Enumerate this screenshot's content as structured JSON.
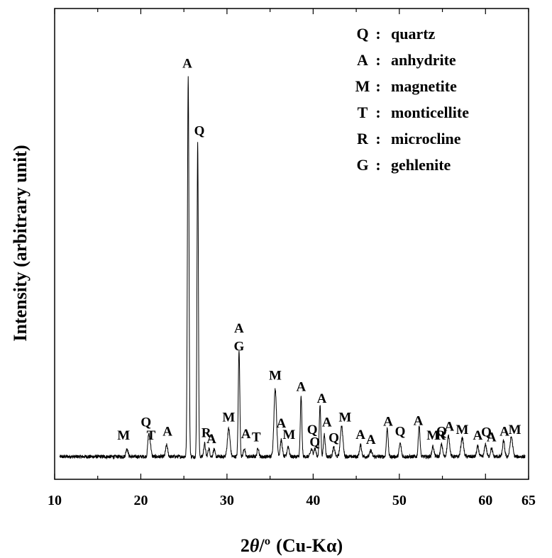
{
  "chart_data": {
    "type": "line",
    "xlabel": "2θ/º (Cu-Kα)",
    "xlabel_parts": {
      "base": "2",
      "theta": "θ",
      "degree": "/º",
      "rest": "(Cu-Kα)"
    },
    "ylabel": "Intensity (arbitrary unit)",
    "xlim": [
      10,
      65
    ],
    "x_ticks": [
      10,
      20,
      30,
      40,
      50,
      60,
      65
    ],
    "x_tick_labels": [
      "10",
      "20",
      "30",
      "40",
      "50",
      "60",
      "65"
    ],
    "ylim": [
      0,
      100
    ],
    "y_ticks": [],
    "grid": false,
    "legend_position": "top-right",
    "legend": [
      {
        "symbol": "Q",
        "text": "quartz"
      },
      {
        "symbol": "A",
        "text": "anhydrite"
      },
      {
        "symbol": "M",
        "text": "magnetite"
      },
      {
        "symbol": "T",
        "text": "monticellite"
      },
      {
        "symbol": "R",
        "text": "microcline"
      },
      {
        "symbol": "G",
        "text": "gehlenite"
      }
    ],
    "baseline": 5.5,
    "peaks": [
      {
        "x": 18.4,
        "h": 2.0,
        "w": 0.12
      },
      {
        "x": 20.9,
        "h": 5.0,
        "w": 0.1
      },
      {
        "x": 21.1,
        "h": 3.0,
        "w": 0.1
      },
      {
        "x": 23.0,
        "h": 2.8,
        "w": 0.12
      },
      {
        "x": 25.5,
        "h": 92.0,
        "w": 0.09
      },
      {
        "x": 26.6,
        "h": 76.0,
        "w": 0.08
      },
      {
        "x": 27.4,
        "h": 3.2,
        "w": 0.1
      },
      {
        "x": 27.9,
        "h": 2.0,
        "w": 0.1
      },
      {
        "x": 28.5,
        "h": 1.8,
        "w": 0.1
      },
      {
        "x": 30.2,
        "h": 6.8,
        "w": 0.15
      },
      {
        "x": 31.4,
        "h": 26.0,
        "w": 0.09
      },
      {
        "x": 32.0,
        "h": 2.0,
        "w": 0.1
      },
      {
        "x": 33.6,
        "h": 2.2,
        "w": 0.1
      },
      {
        "x": 35.6,
        "h": 16.5,
        "w": 0.15
      },
      {
        "x": 36.3,
        "h": 4.0,
        "w": 0.12
      },
      {
        "x": 37.1,
        "h": 2.5,
        "w": 0.12
      },
      {
        "x": 38.6,
        "h": 14.5,
        "w": 0.09
      },
      {
        "x": 39.8,
        "h": 1.8,
        "w": 0.12
      },
      {
        "x": 40.2,
        "h": 2.0,
        "w": 0.12
      },
      {
        "x": 40.8,
        "h": 12.5,
        "w": 0.09
      },
      {
        "x": 41.3,
        "h": 5.5,
        "w": 0.1
      },
      {
        "x": 42.4,
        "h": 2.2,
        "w": 0.12
      },
      {
        "x": 43.3,
        "h": 7.5,
        "w": 0.15
      },
      {
        "x": 45.5,
        "h": 2.8,
        "w": 0.12
      },
      {
        "x": 46.7,
        "h": 1.5,
        "w": 0.12
      },
      {
        "x": 48.6,
        "h": 7.0,
        "w": 0.1
      },
      {
        "x": 50.1,
        "h": 3.2,
        "w": 0.12
      },
      {
        "x": 52.3,
        "h": 7.5,
        "w": 0.1
      },
      {
        "x": 53.9,
        "h": 2.5,
        "w": 0.12
      },
      {
        "x": 54.9,
        "h": 3.0,
        "w": 0.12
      },
      {
        "x": 55.7,
        "h": 5.0,
        "w": 0.14
      },
      {
        "x": 57.3,
        "h": 4.5,
        "w": 0.15
      },
      {
        "x": 59.1,
        "h": 2.5,
        "w": 0.12
      },
      {
        "x": 60.0,
        "h": 3.0,
        "w": 0.12
      },
      {
        "x": 60.7,
        "h": 2.0,
        "w": 0.12
      },
      {
        "x": 62.1,
        "h": 3.8,
        "w": 0.12
      },
      {
        "x": 63.0,
        "h": 4.8,
        "w": 0.15
      }
    ],
    "peak_labels": [
      {
        "text": "M",
        "x": 18.0,
        "y": 9.6
      },
      {
        "text": "Q",
        "x": 20.6,
        "y": 12.8
      },
      {
        "text": "T",
        "x": 21.2,
        "y": 9.6
      },
      {
        "text": "A",
        "x": 23.1,
        "y": 10.6
      },
      {
        "text": "A",
        "x": 25.4,
        "y": 99.9
      },
      {
        "text": "Q",
        "x": 26.8,
        "y": 83.6
      },
      {
        "text": "R",
        "x": 27.6,
        "y": 10.2
      },
      {
        "text": "A",
        "x": 28.2,
        "y": 8.8
      },
      {
        "text": "M",
        "x": 30.2,
        "y": 14.0
      },
      {
        "text": "A",
        "x": 31.4,
        "y": 35.6
      },
      {
        "text": "G",
        "x": 31.4,
        "y": 31.2
      },
      {
        "text": "A",
        "x": 32.2,
        "y": 10.0
      },
      {
        "text": "T",
        "x": 33.4,
        "y": 9.2
      },
      {
        "text": "M",
        "x": 35.6,
        "y": 24.2
      },
      {
        "text": "A",
        "x": 36.3,
        "y": 12.6
      },
      {
        "text": "M",
        "x": 37.2,
        "y": 9.8
      },
      {
        "text": "A",
        "x": 38.6,
        "y": 21.4
      },
      {
        "text": "Q",
        "x": 39.9,
        "y": 11.0
      },
      {
        "text": "Q",
        "x": 40.2,
        "y": 8.0
      },
      {
        "text": "A",
        "x": 41.0,
        "y": 18.6
      },
      {
        "text": "A",
        "x": 41.6,
        "y": 12.8
      },
      {
        "text": "Q",
        "x": 42.4,
        "y": 9.0
      },
      {
        "text": "M",
        "x": 43.7,
        "y": 14.0
      },
      {
        "text": "A",
        "x": 45.5,
        "y": 9.8
      },
      {
        "text": "A",
        "x": 46.7,
        "y": 8.6
      },
      {
        "text": "A",
        "x": 48.7,
        "y": 13.0
      },
      {
        "text": "Q",
        "x": 50.1,
        "y": 10.6
      },
      {
        "text": "A",
        "x": 52.2,
        "y": 13.2
      },
      {
        "text": "M",
        "x": 53.9,
        "y": 9.6
      },
      {
        "text": "Q",
        "x": 54.9,
        "y": 10.6
      },
      {
        "text": "R",
        "x": 54.8,
        "y": 9.6
      },
      {
        "text": "A",
        "x": 55.8,
        "y": 11.8
      },
      {
        "text": "M",
        "x": 57.3,
        "y": 11.0
      },
      {
        "text": "A",
        "x": 59.1,
        "y": 9.6
      },
      {
        "text": "Q",
        "x": 60.1,
        "y": 10.4
      },
      {
        "text": "A",
        "x": 60.7,
        "y": 9.2
      },
      {
        "text": "A",
        "x": 62.2,
        "y": 10.6
      },
      {
        "text": "M",
        "x": 63.4,
        "y": 11.0
      }
    ]
  }
}
